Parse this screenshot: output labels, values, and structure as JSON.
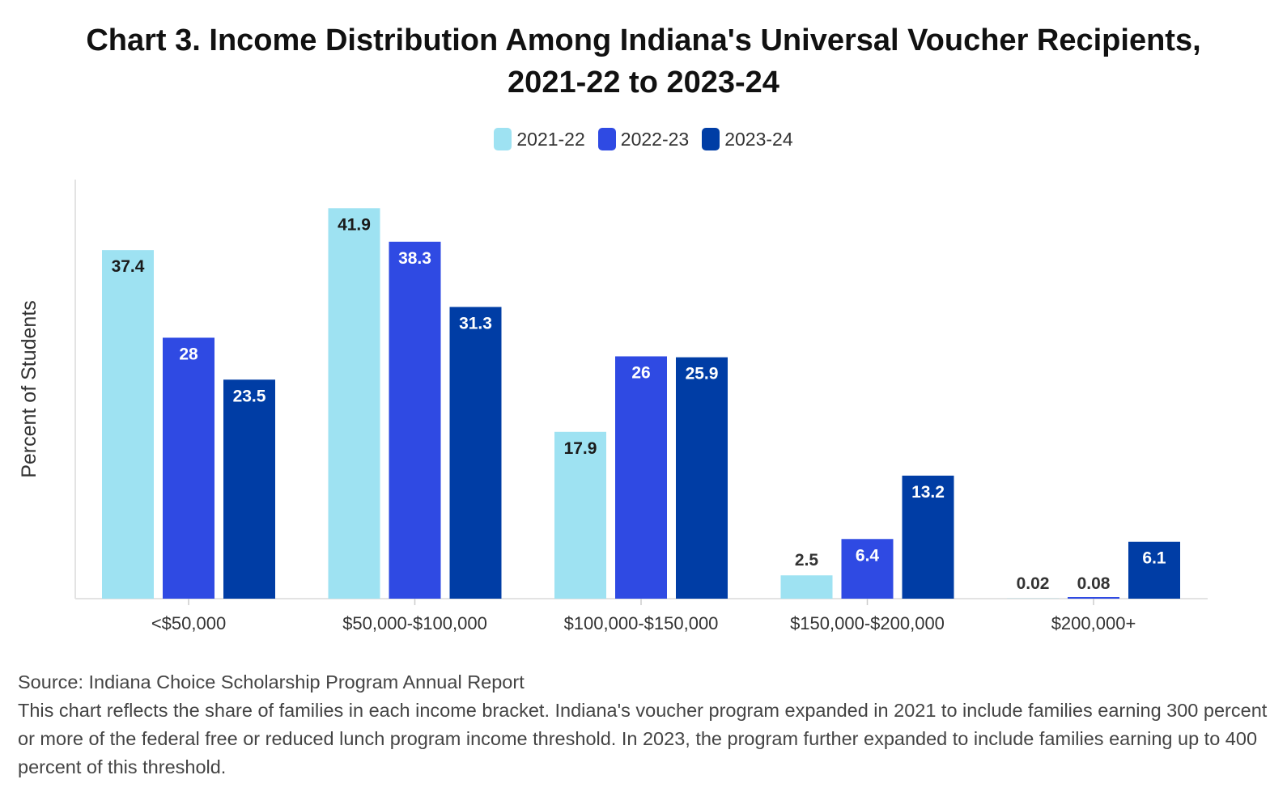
{
  "chart_data": {
    "type": "bar",
    "title_line1": "Chart 3. Income Distribution Among Indiana's Universal Voucher Recipients,",
    "title_line2": "2021-22 to 2023-24",
    "ylabel": "Percent of Students",
    "xlabel": "",
    "categories": [
      "<$50,000",
      "$50,000-$100,000",
      "$100,000-$150,000",
      "$150,000-$200,000",
      "$200,000+"
    ],
    "series": [
      {
        "name": "2021-22",
        "color": "#9ee2f2",
        "label_color": "#1a1a1a",
        "values": [
          37.4,
          41.9,
          17.9,
          2.5,
          0.02
        ]
      },
      {
        "name": "2022-23",
        "color": "#2f4ae3",
        "label_color": "#ffffff",
        "values": [
          28,
          38.3,
          26,
          6.4,
          0.08
        ]
      },
      {
        "name": "2023-24",
        "color": "#003da5",
        "label_color": "#ffffff",
        "values": [
          23.5,
          31.3,
          25.9,
          13.2,
          6.1
        ]
      }
    ],
    "value_labels": [
      [
        "37.4",
        "41.9",
        "17.9",
        "2.5",
        "0.02"
      ],
      [
        "28",
        "38.3",
        "26",
        "6.4",
        "0.08"
      ],
      [
        "23.5",
        "31.3",
        "25.9",
        "13.2",
        "6.1"
      ]
    ],
    "ylim": [
      0,
      45
    ],
    "grid": false,
    "legend_position": "top-center"
  },
  "footer": {
    "source": "Source: Indiana Choice Scholarship Program Annual Report",
    "note": "This chart reflects the share of families in each income bracket. Indiana's voucher program expanded in 2021 to include families earning 300 percent or more of the federal free or reduced lunch program income threshold. In 2023, the program further expanded to include families earning up to 400 percent of this threshold."
  }
}
